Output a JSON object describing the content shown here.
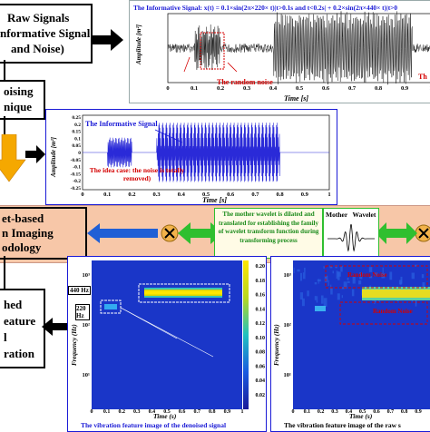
{
  "left_column": {
    "raw_signals_box": [
      "Raw Signals",
      "nformative Signal",
      "and Noise)"
    ],
    "denoising_box": [
      "oising",
      "nique"
    ],
    "wavelet_box": [
      "et-based",
      "n Imaging",
      "odology"
    ],
    "feature_box": [
      "hed",
      "eature",
      "l",
      "ration"
    ]
  },
  "top_panel": {
    "formula_title": "The Informative Signal:  x(t) = 0.1×sin(2π×220× t)|t>0.1s and t<0.2s| + 0.2×sin(2π×440× t)|t>0",
    "ylabel": "Amplitude [m²]",
    "xlabel": "Time [s]",
    "noise_label": "The random noise",
    "right_label_fragment": "Th",
    "x_ticks": [
      "0",
      "0.1",
      "0.2",
      "0.3",
      "0.4",
      "0.5",
      "0.6",
      "0.7",
      "0.8",
      "0.9",
      "1"
    ]
  },
  "middle_panel": {
    "signal_label": "The Informative Signal",
    "ideal_case_label": "The idea case: the noise is totally removed)",
    "ylabel": "Amplitude [m²]",
    "xlabel": "Time [s]",
    "y_ticks": [
      "0.25",
      "0.2",
      "0.15",
      "0.1",
      "0.05",
      "0",
      "-0.05",
      "-0.1",
      "-0.15",
      "-0.2",
      "-0.25"
    ],
    "x_ticks": [
      "0",
      "0.1",
      "0.2",
      "0.3",
      "0.4",
      "0.5",
      "0.6",
      "0.7",
      "0.8",
      "0.9",
      "1"
    ]
  },
  "wavelet_band": {
    "description": "The mother wavelet is dilated and translated for establishing the family of wavelet transform function during transforming process",
    "mother_wavelet_label": "Mother   Wavelet"
  },
  "left_spectrogram": {
    "label_440": "440 Hz",
    "label_220": "220 Hz",
    "ylabel": "Frequency (Hz)",
    "xlabel": "Time (s)",
    "x_ticks": [
      "0",
      "0.1",
      "0.2",
      "0.3",
      "0.4",
      "0.5",
      "0.6",
      "0.7",
      "0.8",
      "0.9",
      "1"
    ],
    "y_ticks": [
      "10³",
      "10²",
      "10¹"
    ],
    "colorbar_ticks": [
      "0.20",
      "0.18",
      "0.16",
      "0.14",
      "0.12",
      "0.10",
      "0.08",
      "0.06",
      "0.04",
      "0.02"
    ],
    "caption": "The vibration feature image of the denoised signal"
  },
  "right_spectrogram": {
    "label_random_noise_top": "Random Noise",
    "label_random_noise_mid": "Random Noise",
    "ylabel": "Frequency (Hz)",
    "xlabel": "Time (s)",
    "x_ticks": [
      "0",
      "0.1",
      "0.2",
      "0.3",
      "0.4",
      "0.5",
      "0.6",
      "0.7",
      "0.8",
      "0.9"
    ],
    "y_ticks": [
      "10³",
      "10²",
      "10¹"
    ],
    "caption": "The vibration feature image of the raw s"
  },
  "colors": {
    "accent_blue": "#1a1ad6",
    "label_red": "#d40000",
    "band_peach": "#f7c7a8",
    "arrow_blue": "#1f5fd6",
    "arrow_orange": "#f5a800",
    "arrow_green": "#2fbf2f"
  }
}
